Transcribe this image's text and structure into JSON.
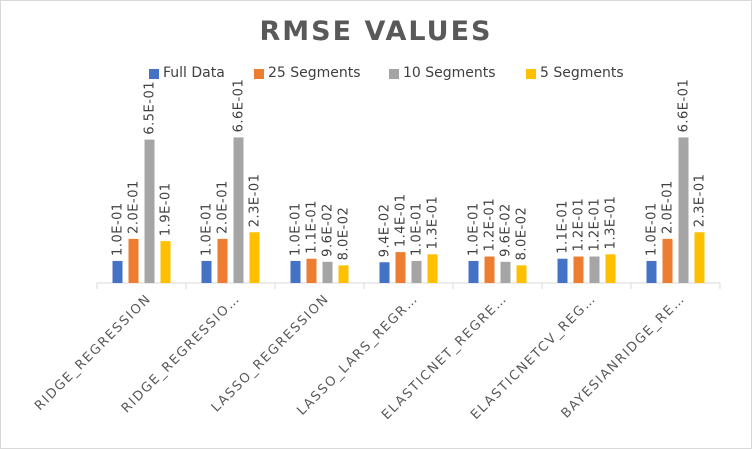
{
  "chart_data": {
    "type": "bar",
    "title": "RMSE VALUES",
    "categories": [
      "RIDGE_REGRESSION",
      "RIDGE_REGRESSIO…",
      "LASSO_REGRESSION",
      "LASSO_LARS_REGR…",
      "ELASTICNET_REGRE…",
      "ELASTICNETCV_REG…",
      "BAYESIANRIDGE_RE…"
    ],
    "series": [
      {
        "name": "Full Data",
        "color": "#4472c4",
        "values": [
          0.1,
          0.1,
          0.1,
          0.094,
          0.1,
          0.11,
          0.1
        ],
        "labels": [
          "1.0E-01",
          "1.0E-01",
          "1.0E-01",
          "9.4E-02",
          "1.0E-01",
          "1.1E-01",
          "1.0E-01"
        ]
      },
      {
        "name": "25 Segments",
        "color": "#ed7d31",
        "values": [
          0.2,
          0.2,
          0.11,
          0.14,
          0.12,
          0.12,
          0.2
        ],
        "labels": [
          "2.0E-01",
          "2.0E-01",
          "1.1E-01",
          "1.4E-01",
          "1.2E-01",
          "1.2E-01",
          "2.0E-01"
        ]
      },
      {
        "name": "10 Segments",
        "color": "#a5a5a5",
        "values": [
          0.65,
          0.66,
          0.096,
          0.1,
          0.096,
          0.12,
          0.66
        ],
        "labels": [
          "6.5E-01",
          "6.6E-01",
          "9.6E-02",
          "1.0E-01",
          "9.6E-02",
          "1.2E-01",
          "6.6E-01"
        ]
      },
      {
        "name": "5 Segments",
        "color": "#ffc000",
        "values": [
          0.19,
          0.23,
          0.08,
          0.13,
          0.08,
          0.13,
          0.23
        ],
        "labels": [
          "1.9E-01",
          "2.3E-01",
          "8.0E-02",
          "1.3E-01",
          "8.0E-02",
          "1.3E-01",
          "2.3E-01"
        ]
      }
    ],
    "ylim": [
      0,
      0.68
    ],
    "legend": "top",
    "grid": false
  }
}
